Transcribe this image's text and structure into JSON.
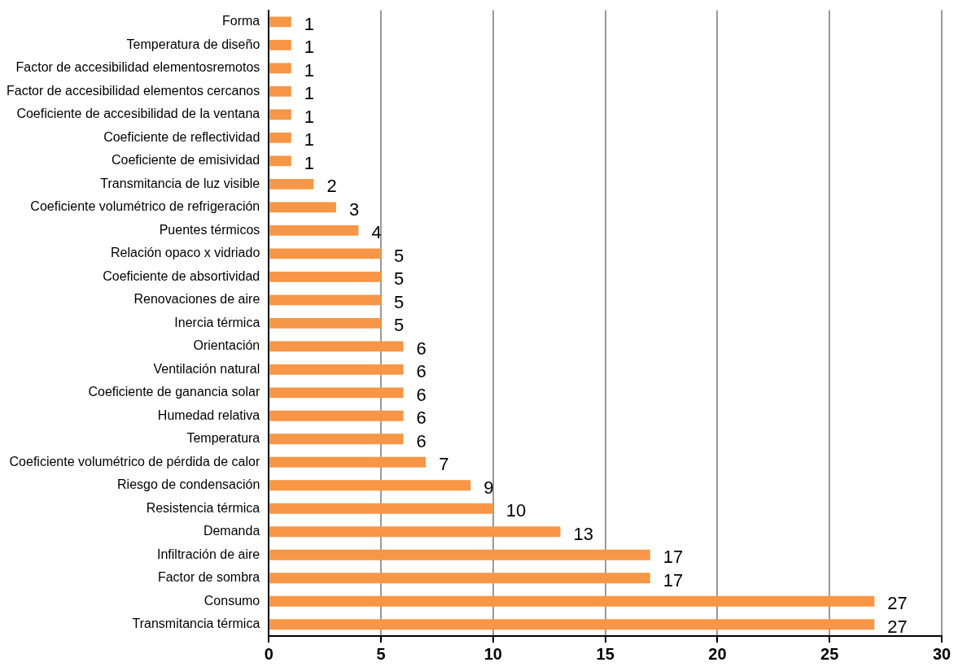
{
  "chart_data": {
    "type": "bar",
    "orientation": "horizontal",
    "categories": [
      "Forma",
      "Temperatura de diseño",
      "Factor de accesibilidad elementosremotos",
      "Factor de accesibilidad elementos cercanos",
      "Coeficiente de accesibilidad de la ventana",
      "Coeficiente de reflectividad",
      "Coeficiente de emisividad",
      "Transmitancia de luz visible",
      "Coeficiente volumétrico de refrigeración",
      "Puentes térmicos",
      "Relación opaco x vidriado",
      "Coeficiente de absortividad",
      "Renovaciones de aire",
      "Inercia térmica",
      "Orientación",
      "Ventilación natural",
      "Coeficiente de ganancia solar",
      "Humedad relativa",
      "Temperatura",
      "Coeficiente volumétrico de pérdida de calor",
      "Riesgo de condensación",
      "Resistencia térmica",
      "Demanda",
      "Infiltración de aire",
      "Factor de sombra",
      "Consumo",
      "Transmitancia térmica"
    ],
    "values": [
      1,
      1,
      1,
      1,
      1,
      1,
      1,
      2,
      3,
      4,
      5,
      5,
      5,
      5,
      6,
      6,
      6,
      6,
      6,
      7,
      9,
      10,
      13,
      17,
      17,
      27,
      27
    ],
    "color": "#f79646",
    "xlim": [
      0,
      30
    ],
    "xticks": [
      0,
      5,
      10,
      15,
      20,
      25,
      30
    ],
    "grid": "x",
    "data_labels": true
  }
}
